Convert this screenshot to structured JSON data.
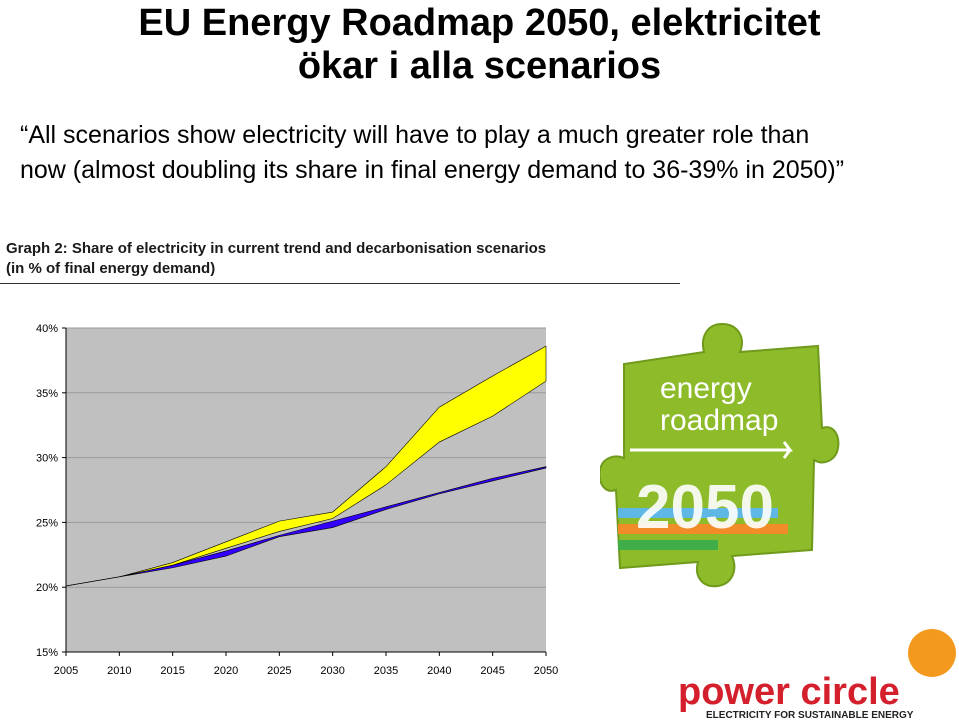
{
  "slide": {
    "title_line1": "EU Energy Roadmap 2050, elektricitet",
    "title_line2": "ökar i alla scenarios",
    "quote": "“All scenarios show electricity will have to play a much greater role than now (almost doubling its share in final energy demand to 36-39% in 2050)”"
  },
  "graph": {
    "caption_line1": "Graph 2: Share of electricity in current trend and decarbonisation scenarios",
    "caption_line2": "(in % of final energy demand)"
  },
  "chart_data": {
    "type": "area",
    "title": "Graph 2: Share of electricity in current trend and decarbonisation scenarios (in % of final energy demand)",
    "xlabel": "",
    "ylabel": "",
    "x": [
      2005,
      2010,
      2015,
      2020,
      2025,
      2030,
      2035,
      2040,
      2045,
      2050
    ],
    "ylim": [
      15,
      40
    ],
    "yticks": [
      "15%",
      "20%",
      "25%",
      "30%",
      "35%",
      "40%"
    ],
    "xticks": [
      "2005",
      "2010",
      "2015",
      "2020",
      "2025",
      "2030",
      "2035",
      "2040",
      "2045",
      "2050"
    ],
    "plot_background": "#c0c0c0",
    "series": [
      {
        "color": "#ffff00",
        "lower": [
          20.1,
          20.8,
          21.7,
          23.0,
          24.3,
          25.3,
          27.9,
          31.2,
          33.2,
          35.9
        ],
        "upper": [
          20.1,
          20.8,
          21.9,
          23.5,
          25.1,
          25.8,
          29.3,
          33.9,
          36.3,
          38.6
        ]
      },
      {
        "color": "#3300ff",
        "lower": [
          20.1,
          20.8,
          21.5,
          22.4,
          23.9,
          24.6,
          26.0,
          27.2,
          28.2,
          29.2
        ],
        "upper": [
          20.1,
          20.8,
          21.7,
          22.8,
          24.0,
          25.1,
          26.2,
          27.3,
          28.4,
          29.3
        ]
      }
    ]
  },
  "logos": {
    "puzzle_text_line1": "energy",
    "puzzle_text_line2": "roadmap",
    "puzzle_year": "2050",
    "pc_name": "power circle",
    "pc_tagline": "ELECTRICITY FOR SUSTAINABLE ENERGY",
    "puzzle_color": "#8dbb2a",
    "pc_orange": "#f39a1e",
    "pc_red": "#d4202c"
  }
}
